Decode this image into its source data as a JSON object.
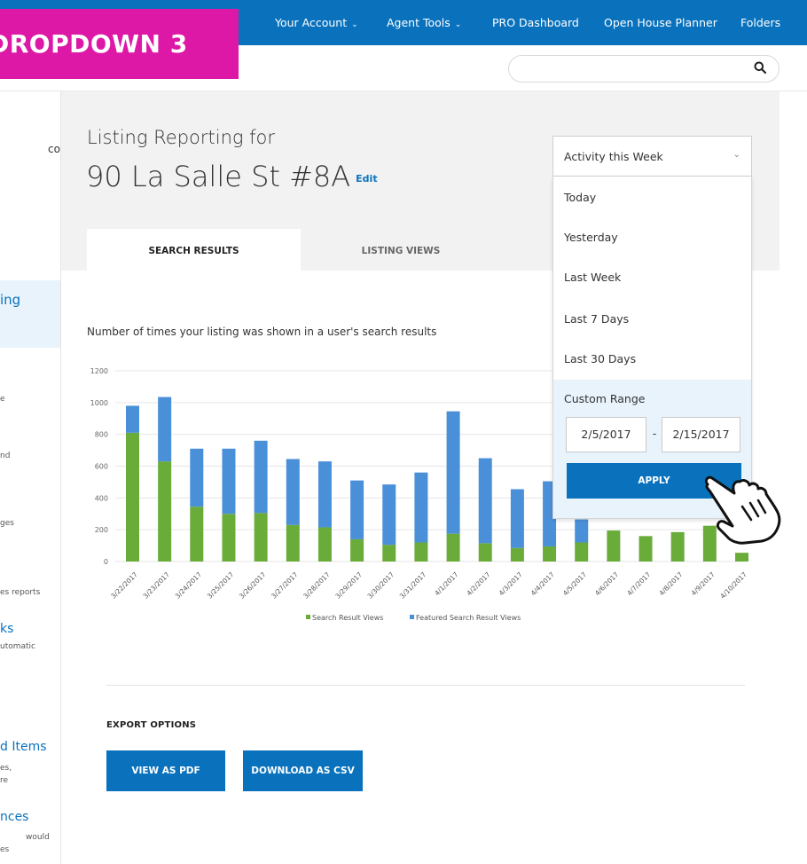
{
  "banner": {
    "label": "DROPDOWN 3"
  },
  "nav": {
    "items": [
      {
        "label": "Your Account",
        "chevron": "⌄"
      },
      {
        "label": "Agent Tools",
        "chevron": "⌄"
      },
      {
        "label": "PRO Dashboard"
      },
      {
        "label": "Open House Planner"
      },
      {
        "label": "Folders"
      }
    ]
  },
  "search": {
    "value": "",
    "icon": "search-icon"
  },
  "sidebar": {
    "texts": [
      "co",
      "ing",
      "e",
      "nd",
      "ges",
      "es reports",
      "ks",
      "utomatic",
      "d Items",
      "es,",
      "re",
      "nces",
      "would",
      "es"
    ]
  },
  "header": {
    "subtitle": "Listing Reporting for",
    "address": "90 La Salle St #8A",
    "edit_label": "Edit"
  },
  "tabs": [
    {
      "label": "SEARCH RESULTS",
      "active": true
    },
    {
      "label": "LISTING VIEWS",
      "active": false
    }
  ],
  "dropdown": {
    "selected": "Activity this Week",
    "options": [
      "Today",
      "Yesterday",
      "Last Week",
      "Last 7 Days",
      "Last 30 Days"
    ],
    "custom_label": "Custom Range",
    "date_from": "2/5/2017",
    "date_sep": "-",
    "date_to": "2/15/2017",
    "apply_label": "APPLY"
  },
  "chart_title": "Number of times your listing was shown in a user's search results",
  "chart_data": {
    "type": "bar",
    "stacked": true,
    "categories": [
      "3/22/2017",
      "3/23/2017",
      "3/24/2017",
      "3/25/2017",
      "3/26/2017",
      "3/27/2017",
      "3/28/2017",
      "3/29/2017",
      "3/30/2017",
      "3/31/2017",
      "4/1/2017",
      "4/2/2017",
      "4/3/2017",
      "4/4/2017",
      "4/5/2017",
      "4/6/2017",
      "4/7/2017",
      "4/8/2017",
      "4/9/2017",
      "4/10/2017"
    ],
    "series": [
      {
        "name": "Search Result Views",
        "color": "#6aac3a",
        "values": [
          810,
          630,
          345,
          300,
          305,
          230,
          215,
          140,
          105,
          120,
          175,
          115,
          85,
          95,
          120,
          195,
          160,
          185,
          225,
          55
        ]
      },
      {
        "name": "Featured Search Result Views",
        "color": "#4a90d9",
        "values": [
          170,
          405,
          365,
          410,
          455,
          415,
          415,
          370,
          380,
          440,
          770,
          535,
          370,
          410,
          145,
          0,
          0,
          0,
          0,
          0
        ]
      }
    ],
    "yticks": [
      0,
      200,
      400,
      600,
      800,
      1000,
      1200
    ],
    "ylim": [
      0,
      1200
    ],
    "grid": true,
    "legend": "bottom"
  },
  "export": {
    "title": "EXPORT OPTIONS",
    "pdf_label": "VIEW AS PDF",
    "csv_label": "DOWNLOAD AS CSV"
  }
}
